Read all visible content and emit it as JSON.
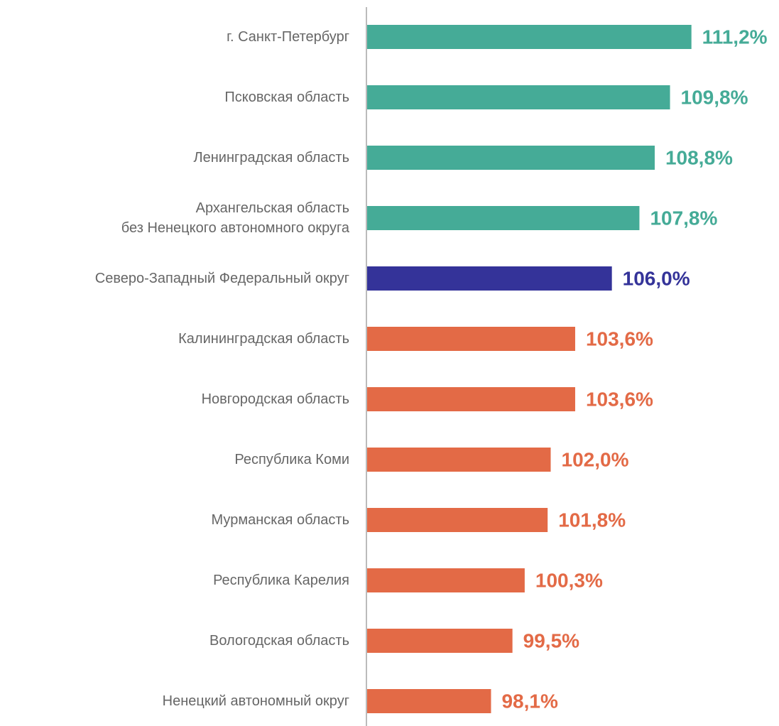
{
  "chart_data": {
    "type": "barh",
    "categories": [
      "г. Санкт-Петербург",
      "Псковская область",
      "Ленинградская область",
      "Архангельская область\nбез Ненецкого автономного округа",
      "Северо-Западный Федеральный округ",
      "Калининградская область",
      "Новгородская область",
      "Республика Коми",
      "Мурманская область",
      "Республика Карелия",
      "Вологодская область",
      "Ненецкий автономный округ"
    ],
    "values": [
      111.2,
      109.8,
      108.8,
      107.8,
      106.0,
      103.6,
      103.6,
      102.0,
      101.8,
      100.3,
      99.5,
      98.1
    ],
    "value_labels": [
      "111,2%",
      "109,8%",
      "108,8%",
      "107,8%",
      "106,0%",
      "103,6%",
      "103,6%",
      "102,0%",
      "101,8%",
      "100,3%",
      "99,5%",
      "98,1%"
    ],
    "colors": [
      "#45ab97",
      "#45ab97",
      "#45ab97",
      "#45ab97",
      "#343399",
      "#e36a46",
      "#e36a46",
      "#e36a46",
      "#e36a46",
      "#e36a46",
      "#e36a46",
      "#e36a46"
    ],
    "xlim": [
      90,
      114
    ]
  }
}
